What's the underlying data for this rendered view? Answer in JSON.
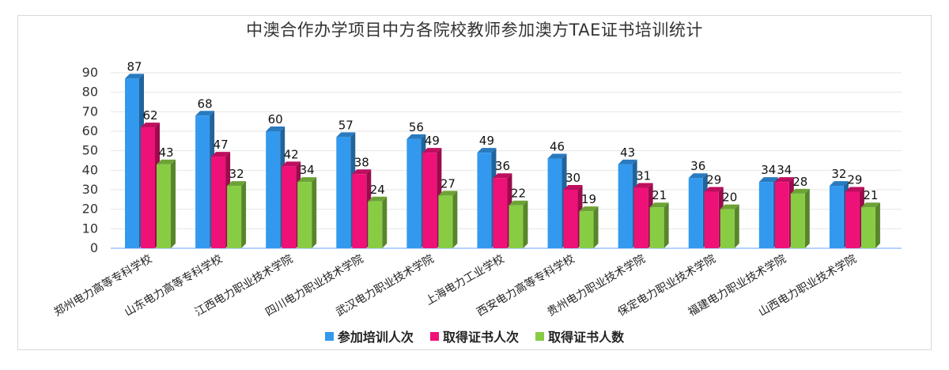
{
  "chart_data": {
    "type": "bar",
    "title": "中澳合作办学项目中方各院校教师参加澳方TAE证书培训统计",
    "categories": [
      "郑州电力高等专科学校",
      "山东电力高等专科学校",
      "江西电力职业技术学院",
      "四川电力职业技术学院",
      "武汉电力职业技术学院",
      "上海电力工业学校",
      "西安电力高等专科学校",
      "贵州电力职业技术学院",
      "保定电力职业技术学院",
      "福建电力职业技术学院",
      "山西电力职业技术学院"
    ],
    "series": [
      {
        "name": "参加培训人次",
        "color": "#3399ee",
        "values": [
          87,
          68,
          60,
          57,
          56,
          49,
          46,
          43,
          36,
          34,
          32
        ]
      },
      {
        "name": "取得证书人次",
        "color": "#ee1177",
        "values": [
          62,
          47,
          42,
          38,
          49,
          36,
          30,
          31,
          29,
          34,
          29
        ]
      },
      {
        "name": "取得证书人数",
        "color": "#88cc44",
        "values": [
          43,
          32,
          34,
          24,
          27,
          22,
          19,
          21,
          20,
          28,
          21
        ]
      }
    ],
    "ylim": [
      0,
      90
    ],
    "yticks": [
      0,
      10,
      20,
      30,
      40,
      50,
      60,
      70,
      80,
      90
    ],
    "grid": true,
    "legend_position": "bottom"
  }
}
